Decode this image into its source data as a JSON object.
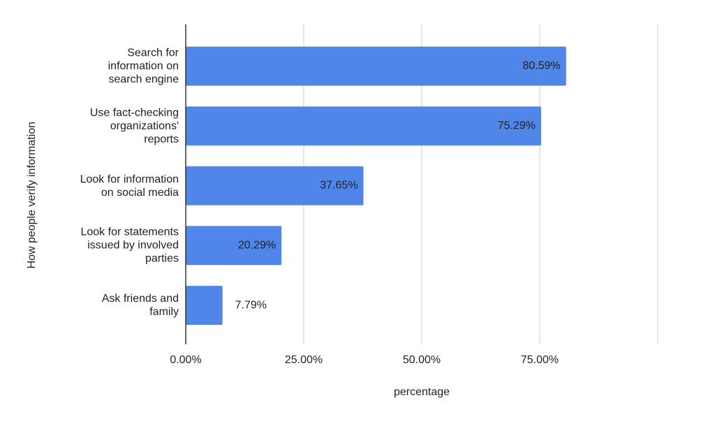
{
  "chart_data": {
    "type": "bar",
    "orientation": "horizontal",
    "categories": [
      "Search for\ninformation on\nsearch engine",
      "Use fact-checking\norganizations'\nreports",
      "Look for information\non social media",
      "Look for statements\nissued by involved\nparties",
      "Ask friends and\nfamily"
    ],
    "values": [
      80.59,
      75.29,
      37.65,
      20.29,
      7.79
    ],
    "value_labels": [
      "80.59%",
      "75.29%",
      "37.65%",
      "20.29%",
      "7.79%"
    ],
    "color": "#5085ea",
    "xlim": [
      0,
      100
    ],
    "xticks": [
      {
        "value": 0,
        "label": "0.00%"
      },
      {
        "value": 25,
        "label": "25.00%"
      },
      {
        "value": 50,
        "label": "50.00%"
      },
      {
        "value": 75,
        "label": "75.00%"
      }
    ],
    "xlabel": "percentage",
    "ylabel": "How people verify information",
    "grid": true
  }
}
